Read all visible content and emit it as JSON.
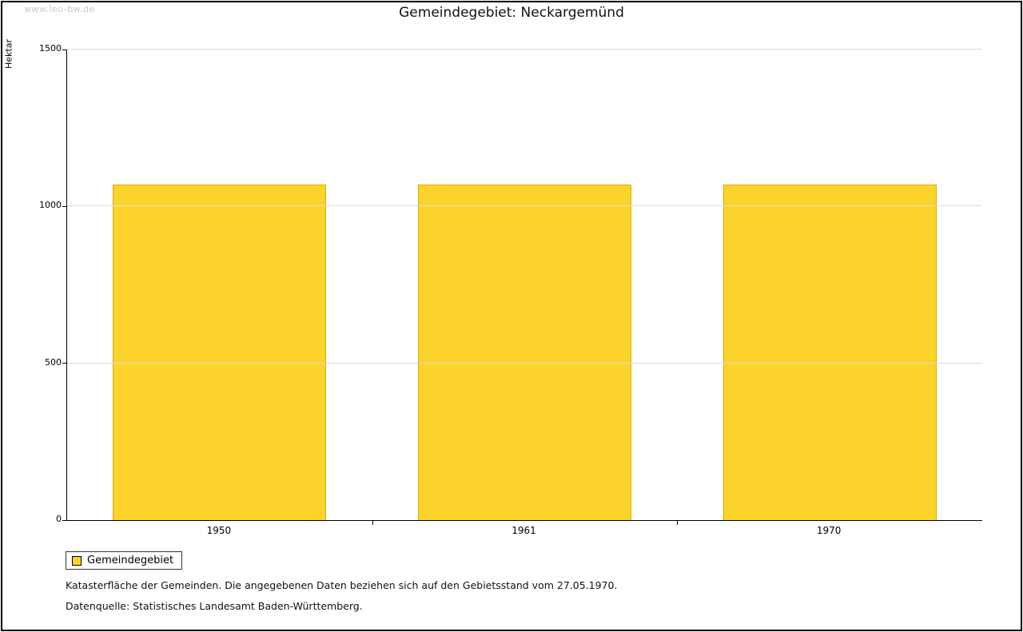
{
  "page": {
    "watermark": "www.leo-bw.de"
  },
  "chart_data": {
    "type": "bar",
    "title": "Gemeindegebiet: Neckargemünd",
    "xlabel": "",
    "ylabel": "Hektar",
    "categories": [
      "1950",
      "1961",
      "1970"
    ],
    "series": [
      {
        "name": "Gemeindegebiet",
        "values": [
          1070,
          1070,
          1070
        ]
      }
    ],
    "ylim": [
      0,
      1500
    ],
    "yticks": [
      0,
      500,
      1000,
      1500
    ],
    "grid": true,
    "legend_position": "bottom-left",
    "colors": {
      "bar": "#FCD32B",
      "bar_border": "#D8AE00",
      "gridline": "#DCDCDC",
      "axis": "#000000"
    }
  },
  "legend": {
    "label": "Gemeindegebiet"
  },
  "footnotes": {
    "line1": "Katasterfläche der Gemeinden. Die angegebenen Daten beziehen sich auf den Gebietsstand vom 27.05.1970.",
    "line2": "Datenquelle: Statistisches Landesamt Baden-Württemberg."
  }
}
